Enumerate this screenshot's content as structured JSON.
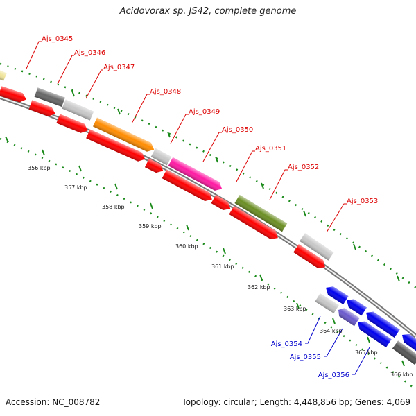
{
  "title": "Acidovorax sp. JS42, complete genome",
  "footer": {
    "accession": "Accession: NC_008782",
    "topology": "Topology: circular; Length: 4,448,856 bp; Genes: 4,069"
  },
  "colors": {
    "forward_label": "#dd0000",
    "reverse_label": "#0000cc",
    "tick": "#1a8a1a",
    "backbone": "#888888"
  },
  "scale_labels": [
    "356 kbp",
    "357 kbp",
    "358 kbp",
    "359 kbp",
    "360 kbp",
    "361 kbp",
    "362 kbp",
    "363 kbp",
    "364 kbp",
    "365 kbp",
    "366 kbp"
  ],
  "gene_labels": {
    "forward": [
      "Ajs_0345",
      "Ajs_0346",
      "Ajs_0347",
      "Ajs_0348",
      "Ajs_0349",
      "Ajs_0350",
      "Ajs_0351",
      "Ajs_0352",
      "Ajs_0353"
    ],
    "reverse": [
      "Ajs_0354",
      "Ajs_0355",
      "Ajs_0356"
    ]
  },
  "features": [
    {
      "color": "#f0e49a",
      "strand": "forward"
    },
    {
      "color": "#666666",
      "strand": "forward"
    },
    {
      "color": "#c8c8c8",
      "strand": "forward"
    },
    {
      "color": "#ff8c00",
      "strand": "forward"
    },
    {
      "color": "#c8c8c8",
      "strand": "forward"
    },
    {
      "color": "#ff1aa3",
      "strand": "forward"
    },
    {
      "color": "#6b8e23",
      "strand": "forward"
    },
    {
      "color": "#c8c8c8",
      "strand": "forward"
    },
    {
      "color": "#0000ee",
      "strand": "reverse"
    },
    {
      "color": "#c8c8c8",
      "strand": "reverse"
    },
    {
      "color": "#6a5acd",
      "strand": "reverse"
    },
    {
      "color": "#555555",
      "strand": "reverse"
    }
  ]
}
